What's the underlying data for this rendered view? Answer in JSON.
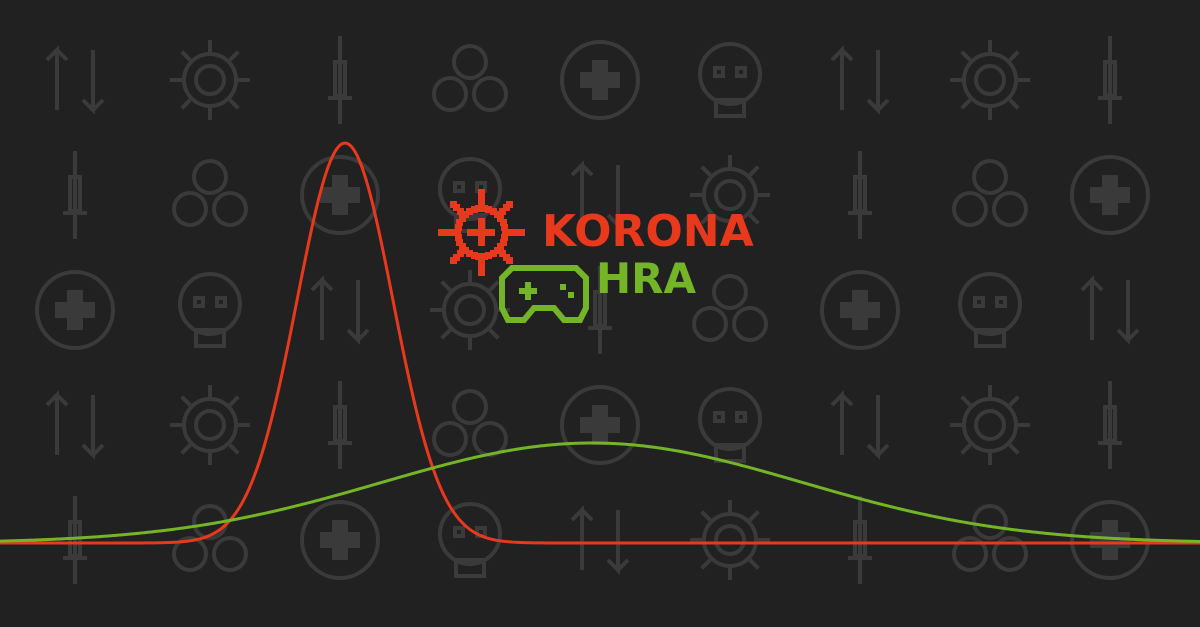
{
  "logo": {
    "line1": "KORONA",
    "line2": "HRA",
    "line1_color": "#e8391c",
    "line2_color": "#74b527",
    "virus_icon": "virus-pixel-icon",
    "gamepad_icon": "gamepad-pixel-icon"
  },
  "colors": {
    "background": "#212121",
    "pattern": "#3a3a3a",
    "red_curve": "#e8391c",
    "green_curve": "#74b527"
  },
  "pattern_icons": [
    "arrows-icon",
    "virus-icon",
    "syringe-icon",
    "people-icon",
    "medical-cross-icon",
    "skull-icon"
  ]
}
